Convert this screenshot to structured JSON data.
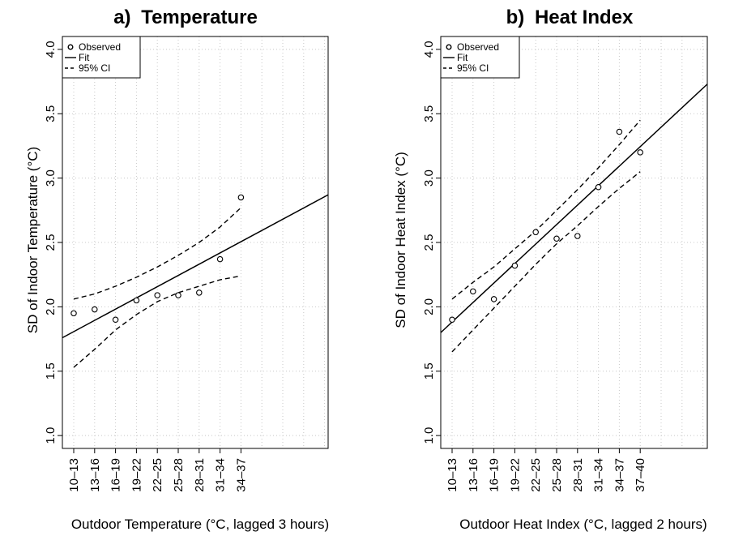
{
  "chart_data": [
    {
      "type": "scatter",
      "panel_label": "a)",
      "title": "Temperature",
      "ylabel": "SD of Indoor Temperature (°C)",
      "xlabel": "Outdoor Temperature (°C, lagged 3 hours)",
      "ylim": [
        0.9,
        4.1
      ],
      "yticks": [
        "1.0",
        "1.5",
        "2.0",
        "2.5",
        "3.0",
        "3.5",
        "4.0"
      ],
      "categories": [
        "10–13",
        "13–16",
        "16–19",
        "19–22",
        "22–25",
        "25–28",
        "28–31",
        "31–34",
        "34–37"
      ],
      "observed": [
        1.95,
        1.98,
        1.9,
        2.05,
        2.09,
        2.09,
        2.11,
        2.37,
        2.85
      ],
      "fit": {
        "start": 1.76,
        "end": 2.87
      },
      "ci_upper": [
        2.06,
        2.1,
        2.16,
        2.23,
        2.31,
        2.4,
        2.5,
        2.62,
        2.77
      ],
      "ci_lower": [
        1.53,
        1.67,
        1.82,
        1.94,
        2.04,
        2.11,
        2.16,
        2.21,
        2.24
      ],
      "grid": true,
      "legend_position": "top-left",
      "legend": [
        "Observed",
        "Fit",
        "95% CI"
      ]
    },
    {
      "type": "scatter",
      "panel_label": "b)",
      "title": "Heat Index",
      "ylabel": "SD of Indoor Heat Index (°C)",
      "xlabel": "Outdoor Heat Index (°C, lagged 2 hours)",
      "ylim": [
        0.9,
        4.1
      ],
      "yticks": [
        "1.0",
        "1.5",
        "2.0",
        "2.5",
        "3.0",
        "3.5",
        "4.0"
      ],
      "categories": [
        "10–13",
        "13–16",
        "16–19",
        "19–22",
        "22–25",
        "25–28",
        "28–31",
        "31–34",
        "34–37",
        "37–40"
      ],
      "observed": [
        1.9,
        2.12,
        2.06,
        2.32,
        2.58,
        2.53,
        2.55,
        2.93,
        3.36,
        3.2
      ],
      "fit": {
        "start": 1.8,
        "end": 3.73
      },
      "ci_upper": [
        2.06,
        2.19,
        2.31,
        2.45,
        2.59,
        2.75,
        2.91,
        3.08,
        3.26,
        3.45
      ],
      "ci_lower": [
        1.65,
        1.82,
        1.99,
        2.16,
        2.33,
        2.49,
        2.63,
        2.78,
        2.92,
        3.05
      ],
      "grid": true,
      "legend_position": "top-left",
      "legend": [
        "Observed",
        "Fit",
        "95% CI"
      ]
    }
  ]
}
